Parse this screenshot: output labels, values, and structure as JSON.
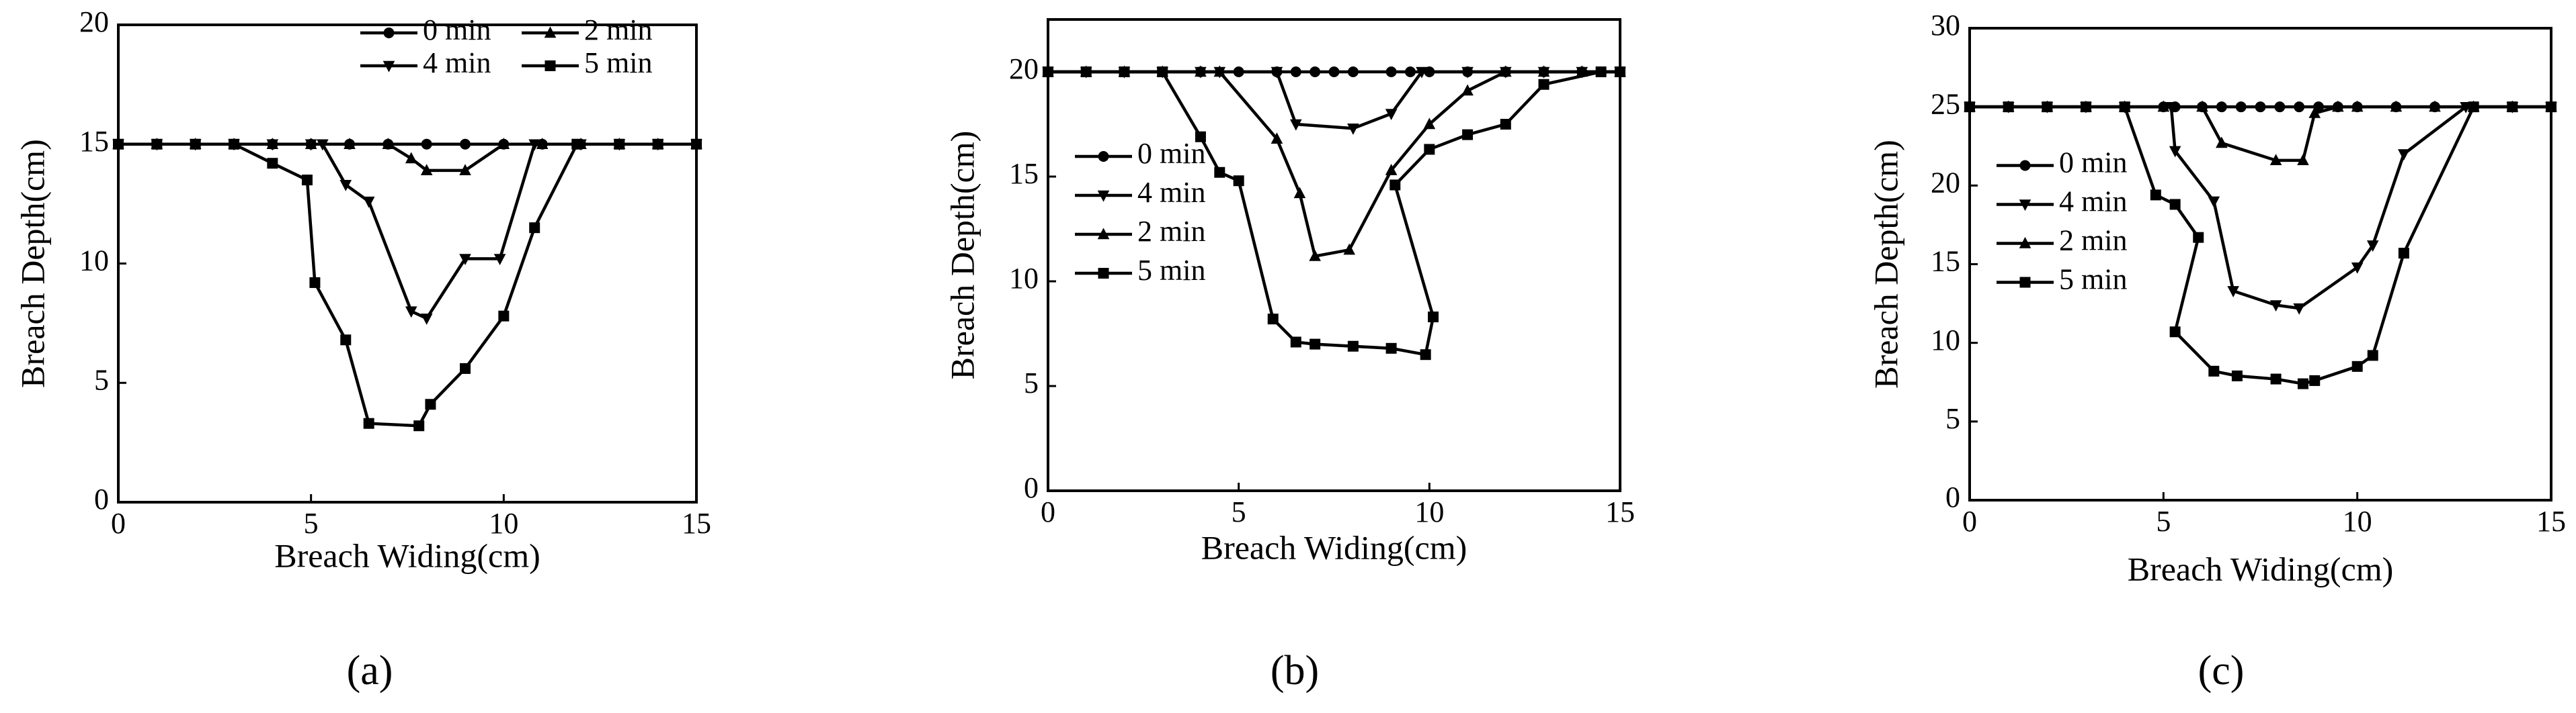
{
  "chart_data": [
    {
      "type": "line",
      "caption": "(a)",
      "x_label": "Breach Widing(cm)",
      "y_label": "Breach Depth(cm)",
      "xlim": [
        0,
        15
      ],
      "xticks": [
        0,
        5,
        10,
        15
      ],
      "ylim": [
        0,
        20
      ],
      "yticks": [
        0,
        5,
        10,
        15,
        20
      ],
      "legend": "upper right",
      "legend_columns": 2,
      "series": [
        {
          "name": "0 min",
          "color": "#000000",
          "marker": "circle",
          "x": [
            0,
            1,
            2,
            3,
            4,
            5,
            6,
            7,
            8,
            9,
            10,
            11,
            12,
            13,
            14,
            15
          ],
          "values": [
            15,
            15,
            15,
            15,
            15,
            15,
            15,
            15,
            15,
            15,
            15,
            15,
            15,
            15,
            15,
            15
          ]
        },
        {
          "name": "2 min",
          "color": "#000000",
          "marker": "triangle-up",
          "x": [
            0,
            1,
            2,
            3,
            4,
            5,
            6,
            7,
            7.6,
            8,
            9,
            10,
            11,
            12,
            13,
            14,
            15
          ],
          "values": [
            15,
            15,
            15,
            15,
            15,
            15,
            15,
            15,
            14.4,
            13.9,
            13.9,
            15,
            15,
            15,
            15,
            15,
            15
          ]
        },
        {
          "name": "4 min",
          "color": "#000000",
          "marker": "triangle-down",
          "x": [
            0,
            1,
            2,
            3,
            4,
            5,
            5.3,
            5.9,
            6.5,
            7.6,
            8,
            9,
            9.9,
            10.8,
            12,
            13,
            14,
            15
          ],
          "values": [
            15,
            15,
            15,
            15,
            15,
            15,
            15,
            13.3,
            12.6,
            8,
            7.7,
            10.2,
            10.2,
            15,
            15,
            15,
            15,
            15
          ]
        },
        {
          "name": "5 min",
          "color": "#000000",
          "marker": "square",
          "x": [
            0,
            1,
            2,
            3,
            4,
            4.9,
            5.1,
            5.9,
            6.5,
            7.8,
            8.1,
            9,
            10,
            10.8,
            11.9,
            13,
            14,
            15
          ],
          "values": [
            15,
            15,
            15,
            15,
            14.2,
            13.5,
            9.2,
            6.8,
            3.3,
            3.2,
            4.1,
            5.6,
            7.8,
            11.5,
            15,
            15,
            15,
            15
          ]
        }
      ]
    },
    {
      "type": "line",
      "caption": "(b)",
      "x_label": "Breach Widing(cm)",
      "y_label": "Breach Depth(cm)",
      "xlim": [
        0,
        15
      ],
      "xticks": [
        0,
        5,
        10,
        15
      ],
      "ylim": [
        0,
        22.5
      ],
      "yticks": [
        0,
        5,
        10,
        15,
        20
      ],
      "legend": "center left",
      "legend_columns": 1,
      "series": [
        {
          "name": "0 min",
          "color": "#000000",
          "marker": "circle",
          "x": [
            0,
            1,
            2,
            3,
            4,
            5,
            6,
            6.5,
            7,
            7.5,
            8,
            9,
            9.5,
            10,
            11,
            12,
            13,
            14,
            14.5,
            15
          ],
          "values": [
            20,
            20,
            20,
            20,
            20,
            20,
            20,
            20,
            20,
            20,
            20,
            20,
            20,
            20,
            20,
            20,
            20,
            20,
            20,
            20
          ]
        },
        {
          "name": "4 min",
          "color": "#000000",
          "marker": "triangle-down",
          "x": [
            0,
            1,
            2,
            3,
            4,
            4.5,
            6,
            6.5,
            8,
            9,
            9.8,
            11,
            12,
            13,
            14,
            15
          ],
          "values": [
            20,
            20,
            20,
            20,
            20,
            20,
            20,
            17.5,
            17.3,
            18,
            20,
            20,
            20,
            20,
            20,
            20
          ]
        },
        {
          "name": "2 min",
          "color": "#000000",
          "marker": "triangle-up",
          "x": [
            0,
            1,
            2,
            3,
            4,
            4.5,
            6,
            6.6,
            7,
            7.9,
            9,
            10,
            11,
            12,
            13,
            14,
            15
          ],
          "values": [
            20,
            20,
            20,
            20,
            20,
            20,
            16.8,
            14.2,
            11.2,
            11.5,
            15.3,
            17.5,
            19.1,
            20,
            20,
            20,
            20
          ]
        },
        {
          "name": "5 min",
          "color": "#000000",
          "marker": "square",
          "x": [
            0,
            1,
            2,
            3,
            4,
            4.5,
            5,
            5.9,
            6.5,
            7,
            8,
            9,
            9.9,
            10.1,
            9.1,
            10,
            11,
            12,
            13,
            14.5,
            15
          ],
          "values": [
            20,
            20,
            20,
            20,
            16.9,
            15.2,
            14.8,
            8.2,
            7.1,
            7,
            6.9,
            6.8,
            6.5,
            8.3,
            14.6,
            16.3,
            17,
            17.5,
            19.4,
            20,
            20
          ]
        }
      ]
    },
    {
      "type": "line",
      "caption": "(c)",
      "x_label": "Breach Widing(cm)",
      "y_label": "Breach Depth(cm)",
      "xlim": [
        0,
        15
      ],
      "xticks": [
        0,
        5,
        10,
        15
      ],
      "ylim": [
        0,
        30
      ],
      "yticks": [
        0,
        5,
        10,
        15,
        20,
        25,
        30
      ],
      "legend": "center left",
      "legend_columns": 1,
      "series": [
        {
          "name": "0 min",
          "color": "#000000",
          "marker": "circle",
          "x": [
            0,
            1,
            2,
            3,
            4,
            5,
            5.3,
            6,
            6.5,
            7,
            7.5,
            8,
            8.5,
            9,
            9.5,
            10,
            11,
            12,
            13,
            14,
            15
          ],
          "values": [
            25,
            25,
            25,
            25,
            25,
            25,
            25,
            25,
            25,
            25,
            25,
            25,
            25,
            25,
            25,
            25,
            25,
            25,
            25,
            25,
            25
          ]
        },
        {
          "name": "4 min",
          "color": "#000000",
          "marker": "triangle-down",
          "x": [
            0,
            1,
            2,
            3,
            4,
            5.2,
            5.3,
            6.3,
            6.8,
            7.9,
            8.5,
            10,
            10.4,
            11.2,
            12.8,
            14,
            15
          ],
          "values": [
            25,
            25,
            25,
            25,
            25,
            25,
            22.2,
            19,
            13.3,
            12.4,
            12.2,
            14.8,
            16.2,
            22,
            25,
            25,
            25
          ]
        },
        {
          "name": "2 min",
          "color": "#000000",
          "marker": "triangle-up",
          "x": [
            0,
            1,
            2,
            3,
            4,
            5,
            6,
            6.5,
            7.9,
            8.6,
            8.9,
            9.5,
            10,
            11,
            12,
            13,
            14,
            15
          ],
          "values": [
            25,
            25,
            25,
            25,
            25,
            25,
            25,
            22.7,
            21.6,
            21.6,
            24.6,
            25,
            25,
            25,
            25,
            25,
            25,
            25
          ]
        },
        {
          "name": "5 min",
          "color": "#000000",
          "marker": "square",
          "x": [
            0,
            1,
            2,
            3,
            4,
            4.8,
            5.3,
            5.9,
            5.3,
            6.3,
            6.9,
            7.9,
            8.6,
            8.9,
            10,
            10.4,
            11.2,
            13,
            14,
            15
          ],
          "values": [
            25,
            25,
            25,
            25,
            25,
            19.4,
            18.8,
            16.7,
            10.7,
            8.2,
            7.9,
            7.7,
            7.4,
            7.6,
            8.5,
            9.2,
            15.7,
            25,
            25,
            25
          ]
        }
      ]
    }
  ]
}
